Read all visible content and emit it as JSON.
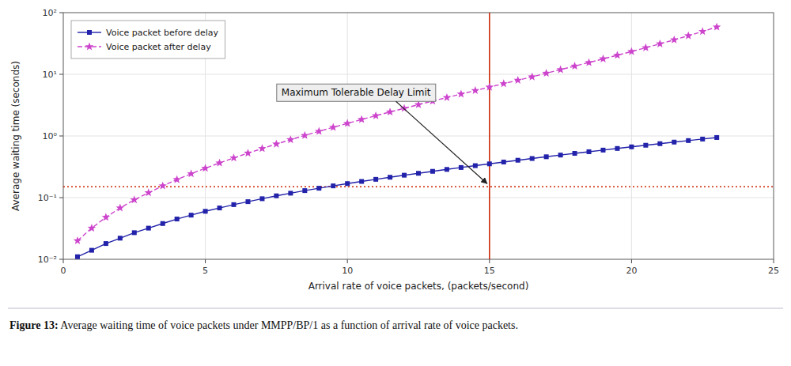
{
  "chart_data": {
    "type": "line",
    "xlabel": "Arrival rate of voice packets, (packets/second)",
    "ylabel": "Average waiting time (seconds)",
    "log": "y",
    "grid": true,
    "legend": "upper left",
    "xlim": [
      0,
      25
    ],
    "xticks": [
      0,
      5,
      10,
      15,
      20,
      25
    ],
    "ylim": [
      0.01,
      100
    ],
    "yticks": [
      {
        "value": 0.01,
        "label": "10⁻²"
      },
      {
        "value": 0.1,
        "label": "10⁻¹"
      },
      {
        "value": 1,
        "label": "10⁰"
      },
      {
        "value": 10,
        "label": "10¹"
      },
      {
        "value": 100,
        "label": "10²"
      }
    ],
    "x": [
      0.5,
      1,
      1.5,
      2,
      2.5,
      3,
      3.5,
      4,
      4.5,
      5,
      5.5,
      6,
      6.5,
      7,
      7.5,
      8,
      8.5,
      9,
      9.5,
      10,
      10.5,
      11,
      11.5,
      12,
      12.5,
      13,
      13.5,
      14,
      14.5,
      15,
      15.5,
      16,
      16.5,
      17,
      17.5,
      18,
      18.5,
      19,
      19.5,
      20,
      20.5,
      21,
      21.5,
      22,
      22.5,
      23
    ],
    "series": [
      {
        "name": "Voice packet before delay",
        "color": "#2222aa",
        "marker": "square",
        "line_style": "solid",
        "values": [
          0.011,
          0.014,
          0.018,
          0.022,
          0.027,
          0.032,
          0.038,
          0.045,
          0.052,
          0.06,
          0.068,
          0.077,
          0.086,
          0.096,
          0.107,
          0.118,
          0.13,
          0.142,
          0.155,
          0.169,
          0.183,
          0.198,
          0.214,
          0.231,
          0.248,
          0.267,
          0.287,
          0.308,
          0.33,
          0.353,
          0.378,
          0.404,
          0.431,
          0.46,
          0.49,
          0.522,
          0.555,
          0.59,
          0.627,
          0.666,
          0.707,
          0.75,
          0.795,
          0.842,
          0.891,
          0.944
        ]
      },
      {
        "name": "Voice packet after delay",
        "color": "#cc44cc",
        "marker": "star",
        "line_style": "dashed",
        "values": [
          0.02,
          0.032,
          0.048,
          0.068,
          0.092,
          0.12,
          0.155,
          0.196,
          0.244,
          0.3,
          0.365,
          0.44,
          0.527,
          0.626,
          0.74,
          0.87,
          1.02,
          1.19,
          1.38,
          1.6,
          1.85,
          2.13,
          2.45,
          2.81,
          3.22,
          3.68,
          4.2,
          4.79,
          5.45,
          6.2,
          7.05,
          8.01,
          9.1,
          10.4,
          11.9,
          13.6,
          15.5,
          17.8,
          20.4,
          23.4,
          27.0,
          31.2,
          36.2,
          42.2,
          49.5,
          58.5
        ]
      }
    ],
    "reference_lines": [
      {
        "axis": "y",
        "value": 0.15,
        "color": "#cc2200",
        "line_style": "dotted"
      },
      {
        "axis": "x",
        "value": 15,
        "color": "#cc2200",
        "line_style": "solid"
      }
    ],
    "annotations": [
      {
        "text": "Maximum Tolerable Delay Limit",
        "x": 15,
        "y": 0.15
      }
    ],
    "caption": {
      "label": "Figure 13:",
      "text": " Average waiting time of voice packets under MMPP/BP/1 as a function of arrival rate of voice packets."
    }
  }
}
